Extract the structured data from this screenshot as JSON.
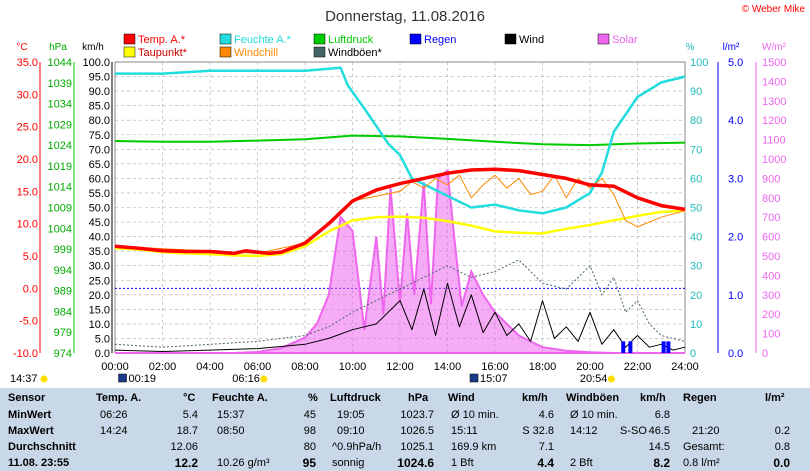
{
  "header": {
    "title": "Donnerstag, 11.08.2016",
    "copyright": "© Weber Mike"
  },
  "legend": [
    {
      "label": "Temp. A.*",
      "color": "#ff0000"
    },
    {
      "label": "Feuchte A.*",
      "color": "#22dddd"
    },
    {
      "label": "Luftdruck",
      "color": "#00cc00"
    },
    {
      "label": "Regen",
      "color": "#0000ff"
    },
    {
      "label": "Wind",
      "color": "#000000"
    },
    {
      "label": "Solar",
      "color": "#ee66ee"
    },
    {
      "label": "Taupunkt*",
      "color": "#ffff00"
    },
    {
      "label": "Windchill",
      "color": "#ff8800"
    },
    {
      "label": "Windböen*",
      "color": "#446666"
    }
  ],
  "units": {
    "temp": "°C",
    "pressure": "hPa",
    "wind": "km/h",
    "humidity": "%",
    "rain": "l/m²",
    "solar": "W/m²"
  },
  "chart_data": {
    "type": "line",
    "x": [
      "00:00",
      "02:00",
      "04:00",
      "06:00",
      "08:00",
      "10:00",
      "12:00",
      "14:00",
      "16:00",
      "18:00",
      "20:00",
      "22:00",
      "24:00"
    ],
    "axes": {
      "temp": {
        "label": "°C",
        "ticks": [
          "35.0",
          "30.0",
          "25.0",
          "20.0",
          "15.0",
          "10.0",
          "5.0",
          "0.0",
          "-5.0",
          "-10.0"
        ],
        "range": [
          -10,
          35
        ]
      },
      "pressure": {
        "label": "hPa",
        "ticks": [
          "1044",
          "1039",
          "1034",
          "1029",
          "1024",
          "1019",
          "1014",
          "1009",
          "1004",
          "999",
          "994",
          "989",
          "984",
          "979",
          "974"
        ],
        "range": [
          974,
          1044
        ]
      },
      "wind": {
        "label": "km/h",
        "ticks": [
          "100.0",
          "95.0",
          "90.0",
          "85.0",
          "80.0",
          "75.0",
          "70.0",
          "65.0",
          "60.0",
          "55.0",
          "50.0",
          "45.0",
          "40.0",
          "35.0",
          "30.0",
          "25.0",
          "20.0",
          "15.0",
          "10.0",
          "5.0",
          "0.0"
        ],
        "range": [
          0,
          100
        ]
      },
      "humidity": {
        "label": "%",
        "ticks": [
          "100",
          "90",
          "80",
          "70",
          "60",
          "50",
          "40",
          "30",
          "20",
          "10",
          "0"
        ],
        "range": [
          0,
          100
        ]
      },
      "rain": {
        "label": "l/m²",
        "ticks": [
          "5.0",
          "4.0",
          "3.0",
          "2.0",
          "1.0",
          "0.0"
        ],
        "range": [
          0,
          5
        ]
      },
      "solar": {
        "label": "W/m²",
        "ticks": [
          "1500",
          "1400",
          "1300",
          "1200",
          "1100",
          "1000",
          "900",
          "800",
          "700",
          "600",
          "500",
          "400",
          "300",
          "200",
          "100",
          "0"
        ],
        "range": [
          0,
          1500
        ]
      }
    },
    "series": [
      {
        "name": "Temp. A.*",
        "axis": "temp",
        "color": "#ff0000",
        "x": [
          0,
          1,
          2,
          3,
          4,
          5,
          5.5,
          6,
          6.5,
          7,
          8,
          9,
          10,
          11,
          12,
          13,
          14,
          15,
          16,
          17,
          18,
          19,
          20,
          21,
          22,
          23,
          24
        ],
        "y": [
          6.5,
          6.2,
          5.8,
          5.7,
          5.7,
          5.4,
          5.8,
          5.6,
          5.4,
          5.6,
          7,
          10,
          13.5,
          15.2,
          16.2,
          17,
          17.8,
          18.3,
          18.4,
          18.2,
          17.6,
          17,
          16,
          15.8,
          14,
          12.8,
          12.2
        ]
      },
      {
        "name": "Taupunkt*",
        "axis": "temp",
        "color": "#ffff00",
        "x": [
          0,
          1,
          2,
          3,
          4,
          5,
          6,
          7,
          8,
          9,
          10,
          11,
          12,
          13,
          14,
          15,
          16,
          17,
          18,
          19,
          20,
          21,
          22,
          23,
          24
        ],
        "y": [
          6.2,
          6,
          5.6,
          5.4,
          5.3,
          5.1,
          5.0,
          5.3,
          6.5,
          8.8,
          10.5,
          11,
          11.1,
          10.9,
          10.4,
          9.7,
          8.8,
          8.6,
          8.5,
          9.2,
          9.8,
          10.5,
          11.2,
          11.8,
          12
        ]
      },
      {
        "name": "Windchill",
        "axis": "temp",
        "color": "#ff8800",
        "x": [
          0,
          6,
          8,
          10,
          12,
          12.5,
          13,
          13.5,
          14,
          14.5,
          15,
          15.5,
          16,
          16.5,
          17,
          17.5,
          18,
          18.5,
          19,
          19.5,
          20,
          20.5,
          21,
          21.5,
          22,
          23,
          24
        ],
        "y": [
          6.5,
          5.4,
          7,
          13.5,
          15,
          16.5,
          15.5,
          17,
          16,
          17.5,
          14,
          16,
          17.5,
          15.5,
          17,
          14.5,
          15,
          17.5,
          14,
          17,
          15.5,
          17,
          14.5,
          10.5,
          9.5,
          11,
          12
        ]
      },
      {
        "name": "Feuchte A.*",
        "axis": "humidity",
        "color": "#22dddd",
        "x": [
          0,
          2,
          4,
          6,
          8,
          9.5,
          9.8,
          10.5,
          11,
          11.5,
          12,
          12.5,
          13,
          14,
          15,
          16,
          17,
          18,
          19,
          20,
          20.5,
          21,
          22,
          23,
          24
        ],
        "y": [
          96,
          96,
          97,
          97,
          97,
          98,
          92,
          84,
          78,
          72,
          68,
          60,
          58,
          54,
          50,
          51,
          49,
          48,
          50,
          55,
          62,
          76,
          88,
          93,
          95
        ]
      },
      {
        "name": "Luftdruck",
        "axis": "pressure",
        "color": "#00cc00",
        "x": [
          0,
          2,
          4,
          6,
          8,
          10,
          12,
          14,
          16,
          18,
          20,
          22,
          24
        ],
        "y": [
          1025.0,
          1024.8,
          1024.8,
          1025.1,
          1025.4,
          1026.3,
          1026.1,
          1025.5,
          1024.8,
          1024.2,
          1024.0,
          1024.4,
          1024.6
        ]
      },
      {
        "name": "Wind",
        "axis": "wind",
        "color": "#000000",
        "x": [
          0,
          2,
          4,
          6,
          8,
          9,
          10,
          11,
          12,
          12.5,
          13,
          13.5,
          14,
          14.5,
          15,
          15.5,
          16,
          16.5,
          17,
          17.5,
          18,
          18.5,
          19,
          19.5,
          20,
          20.5,
          21,
          21.5,
          22,
          22.5,
          23,
          23.5,
          24
        ],
        "y": [
          1,
          0.5,
          1,
          1.5,
          3,
          5,
          8,
          10,
          18,
          8,
          22,
          6,
          24,
          9,
          20,
          7,
          14,
          6,
          10,
          4,
          18,
          5,
          9,
          4,
          14,
          3,
          8,
          2,
          6,
          2,
          3,
          1,
          2
        ]
      },
      {
        "name": "Windböen*",
        "axis": "wind",
        "color": "#446666",
        "x": [
          0,
          2,
          4,
          6,
          8,
          9,
          10,
          11,
          12,
          13,
          14,
          15,
          16,
          17,
          18,
          19,
          20,
          20.5,
          21,
          21.5,
          22,
          22.5,
          23,
          24
        ],
        "y": [
          3,
          2,
          3,
          4,
          6,
          9,
          14,
          18,
          22,
          26,
          30,
          26,
          28,
          32,
          24,
          22,
          30,
          20,
          26,
          14,
          18,
          10,
          6,
          4
        ]
      },
      {
        "name": "Solar",
        "axis": "solar",
        "color": "#ee66ee",
        "x": [
          0,
          5,
          6,
          7,
          8,
          8.5,
          9,
          9.5,
          10,
          10.5,
          11,
          11.3,
          11.6,
          12,
          12.3,
          12.6,
          13,
          13.3,
          13.6,
          14,
          14.3,
          14.6,
          15,
          15.5,
          16,
          16.5,
          17,
          17.5,
          18,
          19,
          20,
          21,
          24
        ],
        "y": [
          0,
          0,
          5,
          25,
          80,
          150,
          300,
          700,
          630,
          120,
          600,
          200,
          850,
          260,
          720,
          300,
          880,
          250,
          900,
          940,
          580,
          240,
          420,
          300,
          210,
          150,
          90,
          60,
          30,
          12,
          4,
          0,
          0
        ]
      }
    ],
    "rain_bars": {
      "name": "Regen",
      "x": [
        21.4,
        21.7,
        23.1,
        23.3
      ],
      "y": [
        0.2,
        0.2,
        0.2,
        0.2
      ]
    },
    "markers": {
      "sunrise": "06:16",
      "sunset": "20:54",
      "moonrise": "00:19",
      "moonset": "15:07",
      "daylength": "14:37"
    }
  },
  "table": {
    "headers": {
      "sensor": "Sensor",
      "temp": "Temp. A.",
      "temp_unit": "°C",
      "hum": "Feuchte A.",
      "hum_unit": "%",
      "press": "Luftdruck",
      "press_unit": "hPa",
      "wind": "Wind",
      "wind_unit": "km/h",
      "gust": "Windböen",
      "gust_unit": "km/h",
      "rain": "Regen",
      "rain_unit": "l/m²"
    },
    "rows": [
      {
        "label": "MinWert",
        "t_time": "06:26",
        "t_val": "5.4",
        "h_time": "15:37",
        "h_val": "45",
        "p_time": "19:05",
        "p_val": "1023.7",
        "w_desc": "Ø 10 min.",
        "w_val": "4.6",
        "g_desc": "Ø 10 min.",
        "g_val": "6.8",
        "r_desc": "",
        "r_val": ""
      },
      {
        "label": "MaxWert",
        "t_time": "14:24",
        "t_val": "18.7",
        "h_time": "08:50",
        "h_val": "98",
        "p_time": "09:10",
        "p_val": "1026.5",
        "w_desc": "15:11",
        "w_val": "S 32.8",
        "g_desc": "14:12",
        "g_dir": "S-SO",
        "g_val": "46.5",
        "r_desc": "21:20",
        "r_val": "0.2"
      },
      {
        "label": "Durchschnitt",
        "t_time": "",
        "t_val": "12.06",
        "h_time": "",
        "h_val": "80",
        "p_time": "^0.9hPa/h",
        "p_val": "1025.1",
        "w_desc": "169.9 km",
        "w_val": "7.1",
        "g_desc": "",
        "g_val": "14.5",
        "r_desc": "Gesamt:",
        "r_val": "0.8"
      },
      {
        "label": "11.08. 23:55",
        "t_time": "",
        "t_val": "12.2",
        "h_time": "10.26 g/m³",
        "h_val": "95",
        "p_time": "sonnig",
        "p_val": "1024.6",
        "w_desc": "1 Bft",
        "w_val": "4.4",
        "g_desc": "2 Bft",
        "g_val": "8.2",
        "r_desc": "0.8 l/m²",
        "r_val": "0.0"
      }
    ]
  }
}
